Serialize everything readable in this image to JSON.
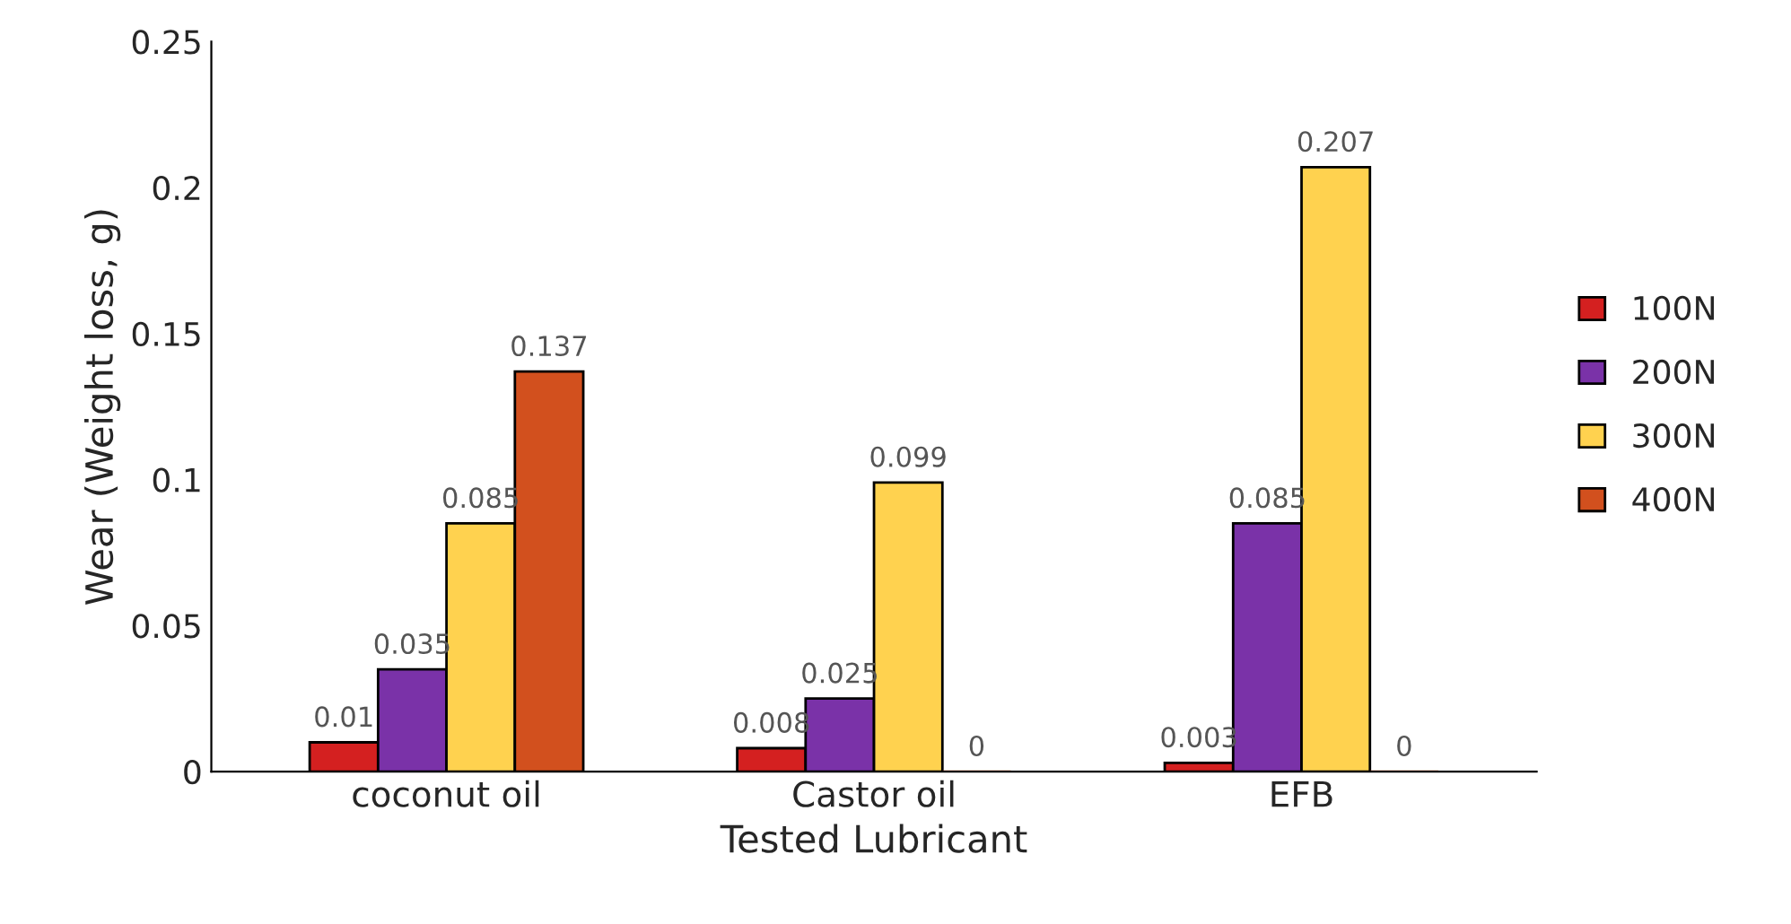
{
  "chart_data": {
    "type": "bar",
    "xlabel": "Tested Lubricant",
    "ylabel": "Wear (Weight loss, g)",
    "categories": [
      "coconut oil",
      "Castor oil",
      "EFB"
    ],
    "series": [
      {
        "name": "100N",
        "color": "#d42020",
        "values": [
          0.01,
          0.008,
          0.003
        ]
      },
      {
        "name": "200N",
        "color": "#7a32a8",
        "values": [
          0.035,
          0.025,
          0.085
        ]
      },
      {
        "name": "300N",
        "color": "#ffd24f",
        "values": [
          0.085,
          0.099,
          0.207
        ]
      },
      {
        "name": "400N",
        "color": "#d2501e",
        "values": [
          0.137,
          0,
          0
        ]
      }
    ],
    "ylim": [
      0,
      0.25
    ],
    "yticks": [
      0,
      0.05,
      0.1,
      0.15,
      0.2,
      0.25
    ],
    "data_labels": true,
    "grid": false,
    "legend": "right"
  }
}
